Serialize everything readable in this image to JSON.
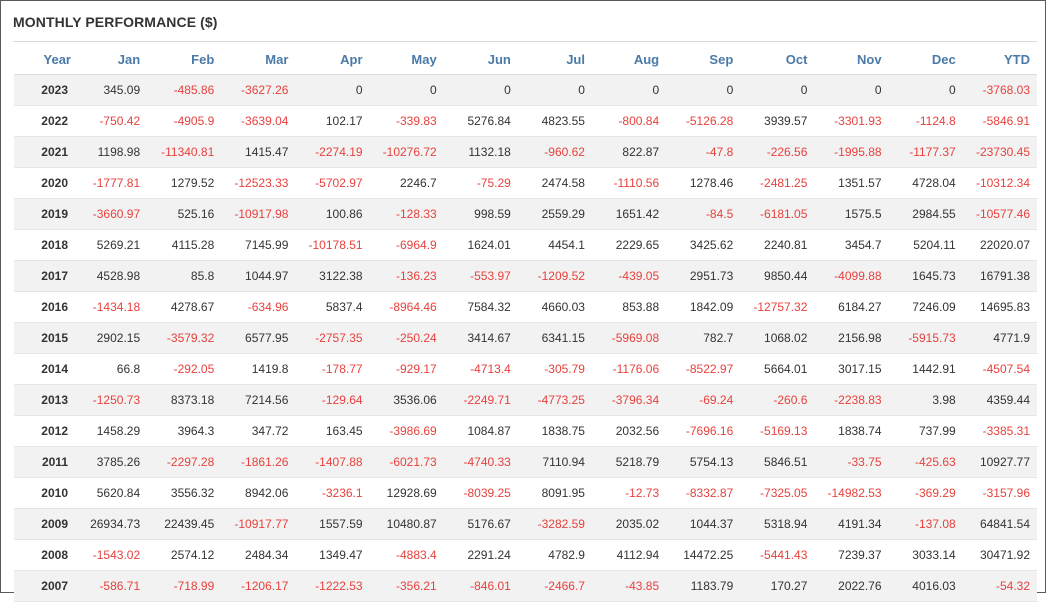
{
  "title": "MONTHLY PERFORMANCE ($)",
  "colors": {
    "negative": "#e8413d",
    "positive": "#333333",
    "header": "#4a7aa8",
    "stripe": "#f2f2f2"
  },
  "columns": [
    "Year",
    "Jan",
    "Feb",
    "Mar",
    "Apr",
    "May",
    "Jun",
    "Jul",
    "Aug",
    "Sep",
    "Oct",
    "Nov",
    "Dec",
    "YTD"
  ],
  "rows": [
    {
      "year": "2023",
      "values": [
        "345.09",
        "-485.86",
        "-3627.26",
        "0",
        "0",
        "0",
        "0",
        "0",
        "0",
        "0",
        "0",
        "0",
        "-3768.03"
      ]
    },
    {
      "year": "2022",
      "values": [
        "-750.42",
        "-4905.9",
        "-3639.04",
        "102.17",
        "-339.83",
        "5276.84",
        "4823.55",
        "-800.84",
        "-5126.28",
        "3939.57",
        "-3301.93",
        "-1124.8",
        "-5846.91"
      ]
    },
    {
      "year": "2021",
      "values": [
        "1198.98",
        "-11340.81",
        "1415.47",
        "-2274.19",
        "-10276.72",
        "1132.18",
        "-960.62",
        "822.87",
        "-47.8",
        "-226.56",
        "-1995.88",
        "-1177.37",
        "-23730.45"
      ]
    },
    {
      "year": "2020",
      "values": [
        "-1777.81",
        "1279.52",
        "-12523.33",
        "-5702.97",
        "2246.7",
        "-75.29",
        "2474.58",
        "-1110.56",
        "1278.46",
        "-2481.25",
        "1351.57",
        "4728.04",
        "-10312.34"
      ]
    },
    {
      "year": "2019",
      "values": [
        "-3660.97",
        "525.16",
        "-10917.98",
        "100.86",
        "-128.33",
        "998.59",
        "2559.29",
        "1651.42",
        "-84.5",
        "-6181.05",
        "1575.5",
        "2984.55",
        "-10577.46"
      ]
    },
    {
      "year": "2018",
      "values": [
        "5269.21",
        "4115.28",
        "7145.99",
        "-10178.51",
        "-6964.9",
        "1624.01",
        "4454.1",
        "2229.65",
        "3425.62",
        "2240.81",
        "3454.7",
        "5204.11",
        "22020.07"
      ]
    },
    {
      "year": "2017",
      "values": [
        "4528.98",
        "85.8",
        "1044.97",
        "3122.38",
        "-136.23",
        "-553.97",
        "-1209.52",
        "-439.05",
        "2951.73",
        "9850.44",
        "-4099.88",
        "1645.73",
        "16791.38"
      ]
    },
    {
      "year": "2016",
      "values": [
        "-1434.18",
        "4278.67",
        "-634.96",
        "5837.4",
        "-8964.46",
        "7584.32",
        "4660.03",
        "853.88",
        "1842.09",
        "-12757.32",
        "6184.27",
        "7246.09",
        "14695.83"
      ]
    },
    {
      "year": "2015",
      "values": [
        "2902.15",
        "-3579.32",
        "6577.95",
        "-2757.35",
        "-250.24",
        "3414.67",
        "6341.15",
        "-5969.08",
        "782.7",
        "1068.02",
        "2156.98",
        "-5915.73",
        "4771.9"
      ]
    },
    {
      "year": "2014",
      "values": [
        "66.8",
        "-292.05",
        "1419.8",
        "-178.77",
        "-929.17",
        "-4713.4",
        "-305.79",
        "-1176.06",
        "-8522.97",
        "5664.01",
        "3017.15",
        "1442.91",
        "-4507.54"
      ]
    },
    {
      "year": "2013",
      "values": [
        "-1250.73",
        "8373.18",
        "7214.56",
        "-129.64",
        "3536.06",
        "-2249.71",
        "-4773.25",
        "-3796.34",
        "-69.24",
        "-260.6",
        "-2238.83",
        "3.98",
        "4359.44"
      ]
    },
    {
      "year": "2012",
      "values": [
        "1458.29",
        "3964.3",
        "347.72",
        "163.45",
        "-3986.69",
        "1084.87",
        "1838.75",
        "2032.56",
        "-7696.16",
        "-5169.13",
        "1838.74",
        "737.99",
        "-3385.31"
      ]
    },
    {
      "year": "2011",
      "values": [
        "3785.26",
        "-2297.28",
        "-1861.26",
        "-1407.88",
        "-6021.73",
        "-4740.33",
        "7110.94",
        "5218.79",
        "5754.13",
        "5846.51",
        "-33.75",
        "-425.63",
        "10927.77"
      ]
    },
    {
      "year": "2010",
      "values": [
        "5620.84",
        "3556.32",
        "8942.06",
        "-3236.1",
        "12928.69",
        "-8039.25",
        "8091.95",
        "-12.73",
        "-8332.87",
        "-7325.05",
        "-14982.53",
        "-369.29",
        "-3157.96"
      ]
    },
    {
      "year": "2009",
      "values": [
        "26934.73",
        "22439.45",
        "-10917.77",
        "1557.59",
        "10480.87",
        "5176.67",
        "-3282.59",
        "2035.02",
        "1044.37",
        "5318.94",
        "4191.34",
        "-137.08",
        "64841.54"
      ]
    },
    {
      "year": "2008",
      "values": [
        "-1543.02",
        "2574.12",
        "2484.34",
        "1349.47",
        "-4883.4",
        "2291.24",
        "4782.9",
        "4112.94",
        "14472.25",
        "-5441.43",
        "7239.37",
        "3033.14",
        "30471.92"
      ]
    },
    {
      "year": "2007",
      "values": [
        "-586.71",
        "-718.99",
        "-1206.17",
        "-1222.53",
        "-356.21",
        "-846.01",
        "-2466.7",
        "-43.85",
        "1183.79",
        "170.27",
        "2022.76",
        "4016.03",
        "-54.32"
      ]
    }
  ]
}
